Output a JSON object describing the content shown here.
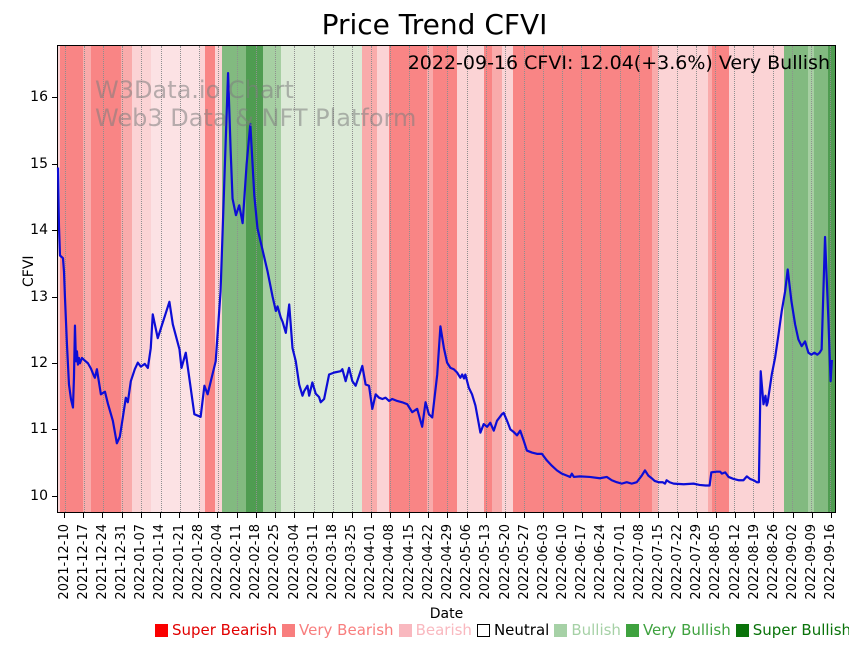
{
  "title": "Price Trend CFVI",
  "annotation": "2022-09-16 CFVI: 12.04(+3.6%) Very Bullish",
  "watermark": {
    "line1": "W3Data.io Chart",
    "line2": "Web3 Data & NFT Platform"
  },
  "axes": {
    "x_label": "Date",
    "y_label": "CFVI",
    "y_ticks": [
      16,
      15,
      14,
      13,
      12,
      11,
      10
    ],
    "y_range": [
      9.74,
      16.79
    ],
    "x_tick_labels": [
      "2021-12-10",
      "2021-12-17",
      "2021-12-24",
      "2021-12-31",
      "2022-01-07",
      "2022-01-14",
      "2022-01-21",
      "2022-01-28",
      "2022-02-04",
      "2022-02-11",
      "2022-02-18",
      "2022-02-25",
      "2022-03-04",
      "2022-03-11",
      "2022-03-18",
      "2022-03-25",
      "2022-04-01",
      "2022-04-08",
      "2022-04-15",
      "2022-04-22",
      "2022-04-29",
      "2022-05-06",
      "2022-05-13",
      "2022-05-20",
      "2022-05-27",
      "2022-06-03",
      "2022-06-10",
      "2022-06-17",
      "2022-06-24",
      "2022-07-01",
      "2022-07-08",
      "2022-07-15",
      "2022-07-22",
      "2022-07-29",
      "2022-08-05",
      "2022-08-12",
      "2022-08-19",
      "2022-08-26",
      "2022-09-02",
      "2022-09-09",
      "2022-09-16"
    ],
    "x_first_tick_frac": 0.00899,
    "x_tick_step_frac": 0.024614
  },
  "line_color": "#0d0dd6",
  "band_palette": {
    "salmon": "#f98585",
    "pink_med": "#f9abab",
    "pink_light": "#fbd3d5",
    "pink_vlight": "#fce2e4",
    "green_dark": "#4f9c51",
    "green_med": "#82ba80",
    "green_mlight": "#a6cfa2",
    "green_vlight": "#dcead7"
  },
  "legend": {
    "items": [
      {
        "label": "Super Bearish",
        "swatch": "#fa0000",
        "text_color": "#e10000",
        "swatch_border": "none"
      },
      {
        "label": "Very Bearish",
        "swatch": "#f87e7e",
        "text_color": "#f87e7e",
        "swatch_border": "none"
      },
      {
        "label": "Bearish",
        "swatch": "#f9b8bf",
        "text_color": "#f9b8bf",
        "swatch_border": "none"
      },
      {
        "label": "Neutral",
        "swatch": "#ffffff",
        "text_color": "#000000",
        "swatch_border": "1px solid #000"
      },
      {
        "label": "Bullish",
        "swatch": "#a6d1a6",
        "text_color": "#a6d1a6",
        "swatch_border": "none"
      },
      {
        "label": "Very Bullish",
        "swatch": "#3fa23f",
        "text_color": "#3fa23f",
        "swatch_border": "none"
      },
      {
        "label": "Super Bullish",
        "swatch": "#0a730a",
        "text_color": "#0a730a",
        "swatch_border": "none"
      }
    ]
  },
  "chart_data": {
    "type": "line",
    "title": "Price Trend CFVI",
    "xlabel": "Date",
    "ylabel": "CFVI",
    "ylim": [
      9.74,
      16.79
    ],
    "x_range_dates": [
      "2021-12-09",
      "2022-09-16"
    ],
    "grid": "vertical-dotted-weekly",
    "legend_position": "bottom-center",
    "last_point": {
      "date": "2022-09-16",
      "value": 12.04,
      "change_pct": "+3.6%",
      "sentiment": "Very Bullish"
    },
    "series": [
      {
        "name": "CFVI",
        "points": [
          [
            0.0,
            14.95
          ],
          [
            0.0013,
            14.05
          ],
          [
            0.0026,
            13.62
          ],
          [
            0.0064,
            13.58
          ],
          [
            0.0077,
            13.38
          ],
          [
            0.009,
            12.98
          ],
          [
            0.0116,
            12.27
          ],
          [
            0.0141,
            11.67
          ],
          [
            0.0167,
            11.45
          ],
          [
            0.0193,
            11.32
          ],
          [
            0.0205,
            11.77
          ],
          [
            0.0218,
            12.56
          ],
          [
            0.0231,
            12.02
          ],
          [
            0.0244,
            12.17
          ],
          [
            0.0257,
            11.97
          ],
          [
            0.027,
            12.07
          ],
          [
            0.0283,
            11.99
          ],
          [
            0.0308,
            12.07
          ],
          [
            0.0347,
            12.03
          ],
          [
            0.0385,
            11.99
          ],
          [
            0.0424,
            11.91
          ],
          [
            0.0462,
            11.8
          ],
          [
            0.0475,
            11.77
          ],
          [
            0.0501,
            11.9
          ],
          [
            0.0552,
            11.52
          ],
          [
            0.0604,
            11.56
          ],
          [
            0.0642,
            11.38
          ],
          [
            0.0706,
            11.12
          ],
          [
            0.0758,
            10.78
          ],
          [
            0.0796,
            10.88
          ],
          [
            0.0835,
            11.17
          ],
          [
            0.0873,
            11.47
          ],
          [
            0.0899,
            11.4
          ],
          [
            0.0937,
            11.72
          ],
          [
            0.0989,
            11.9
          ],
          [
            0.1027,
            12.0
          ],
          [
            0.1066,
            11.94
          ],
          [
            0.1117,
            11.98
          ],
          [
            0.1156,
            11.92
          ],
          [
            0.1194,
            12.22
          ],
          [
            0.122,
            12.73
          ],
          [
            0.1284,
            12.37
          ],
          [
            0.1434,
            12.92
          ],
          [
            0.1477,
            12.58
          ],
          [
            0.1563,
            12.2
          ],
          [
            0.1589,
            11.92
          ],
          [
            0.1644,
            12.15
          ],
          [
            0.1755,
            11.22
          ],
          [
            0.1836,
            11.18
          ],
          [
            0.1884,
            11.65
          ],
          [
            0.1926,
            11.52
          ],
          [
            0.2029,
            12.02
          ],
          [
            0.2093,
            13.08
          ],
          [
            0.2145,
            14.9
          ],
          [
            0.2189,
            16.38
          ],
          [
            0.2222,
            15.2
          ],
          [
            0.2247,
            14.48
          ],
          [
            0.229,
            14.23
          ],
          [
            0.2333,
            14.38
          ],
          [
            0.2376,
            14.11
          ],
          [
            0.2427,
            15.0
          ],
          [
            0.2475,
            15.61
          ],
          [
            0.2526,
            14.53
          ],
          [
            0.2568,
            14.03
          ],
          [
            0.2697,
            13.38
          ],
          [
            0.2761,
            13.0
          ],
          [
            0.2803,
            12.78
          ],
          [
            0.2825,
            12.85
          ],
          [
            0.2868,
            12.68
          ],
          [
            0.2889,
            12.62
          ],
          [
            0.2932,
            12.45
          ],
          [
            0.2975,
            12.88
          ],
          [
            0.3018,
            12.22
          ],
          [
            0.306,
            12.02
          ],
          [
            0.3104,
            11.67
          ],
          [
            0.3146,
            11.5
          ],
          [
            0.3168,
            11.57
          ],
          [
            0.321,
            11.65
          ],
          [
            0.3232,
            11.5
          ],
          [
            0.3274,
            11.7
          ],
          [
            0.3317,
            11.53
          ],
          [
            0.336,
            11.48
          ],
          [
            0.3381,
            11.4
          ],
          [
            0.3425,
            11.45
          ],
          [
            0.3489,
            11.82
          ],
          [
            0.3557,
            11.85
          ],
          [
            0.3638,
            11.87
          ],
          [
            0.366,
            11.9
          ],
          [
            0.3702,
            11.72
          ],
          [
            0.3746,
            11.92
          ],
          [
            0.3788,
            11.72
          ],
          [
            0.3831,
            11.65
          ],
          [
            0.3874,
            11.8
          ],
          [
            0.3917,
            11.95
          ],
          [
            0.3959,
            11.67
          ],
          [
            0.4003,
            11.65
          ],
          [
            0.4045,
            11.3
          ],
          [
            0.4088,
            11.52
          ],
          [
            0.4131,
            11.47
          ],
          [
            0.4174,
            11.45
          ],
          [
            0.4216,
            11.47
          ],
          [
            0.426,
            11.42
          ],
          [
            0.4302,
            11.45
          ],
          [
            0.4366,
            11.42
          ],
          [
            0.443,
            11.4
          ],
          [
            0.4495,
            11.37
          ],
          [
            0.4559,
            11.25
          ],
          [
            0.4623,
            11.3
          ],
          [
            0.4687,
            11.03
          ],
          [
            0.473,
            11.4
          ],
          [
            0.4773,
            11.22
          ],
          [
            0.4816,
            11.17
          ],
          [
            0.488,
            11.82
          ],
          [
            0.4922,
            12.55
          ],
          [
            0.4966,
            12.22
          ],
          [
            0.5008,
            12.0
          ],
          [
            0.5051,
            11.92
          ],
          [
            0.5094,
            11.9
          ],
          [
            0.5136,
            11.85
          ],
          [
            0.5179,
            11.77
          ],
          [
            0.5201,
            11.82
          ],
          [
            0.5226,
            11.76
          ],
          [
            0.5243,
            11.82
          ],
          [
            0.5287,
            11.62
          ],
          [
            0.5329,
            11.52
          ],
          [
            0.5372,
            11.35
          ],
          [
            0.5436,
            10.94
          ],
          [
            0.5479,
            11.07
          ],
          [
            0.5522,
            11.03
          ],
          [
            0.5564,
            11.09
          ],
          [
            0.5608,
            10.97
          ],
          [
            0.565,
            11.12
          ],
          [
            0.5714,
            11.22
          ],
          [
            0.5736,
            11.24
          ],
          [
            0.5779,
            11.12
          ],
          [
            0.5821,
            10.99
          ],
          [
            0.5865,
            10.95
          ],
          [
            0.5907,
            10.9
          ],
          [
            0.5949,
            10.97
          ],
          [
            0.5993,
            10.82
          ],
          [
            0.6035,
            10.67
          ],
          [
            0.61,
            10.64
          ],
          [
            0.6164,
            10.62
          ],
          [
            0.6228,
            10.62
          ],
          [
            0.6292,
            10.52
          ],
          [
            0.6356,
            10.44
          ],
          [
            0.6421,
            10.37
          ],
          [
            0.6485,
            10.32
          ],
          [
            0.6549,
            10.29
          ],
          [
            0.6591,
            10.27
          ],
          [
            0.6613,
            10.32
          ],
          [
            0.6639,
            10.27
          ],
          [
            0.6716,
            10.28
          ],
          [
            0.6844,
            10.27
          ],
          [
            0.6973,
            10.25
          ],
          [
            0.7063,
            10.27
          ],
          [
            0.7127,
            10.22
          ],
          [
            0.7191,
            10.19
          ],
          [
            0.7255,
            10.17
          ],
          [
            0.7319,
            10.19
          ],
          [
            0.7384,
            10.17
          ],
          [
            0.7448,
            10.19
          ],
          [
            0.7512,
            10.29
          ],
          [
            0.7554,
            10.37
          ],
          [
            0.7598,
            10.29
          ],
          [
            0.7641,
            10.25
          ],
          [
            0.7679,
            10.21
          ],
          [
            0.7731,
            10.19
          ],
          [
            0.7782,
            10.19
          ],
          [
            0.7812,
            10.17
          ],
          [
            0.7833,
            10.22
          ],
          [
            0.7872,
            10.19
          ],
          [
            0.7923,
            10.17
          ],
          [
            0.8052,
            10.16
          ],
          [
            0.818,
            10.17
          ],
          [
            0.8257,
            10.15
          ],
          [
            0.8334,
            10.14
          ],
          [
            0.8386,
            10.14
          ],
          [
            0.8408,
            10.34
          ],
          [
            0.8476,
            10.35
          ],
          [
            0.8523,
            10.35
          ],
          [
            0.8544,
            10.32
          ],
          [
            0.8587,
            10.34
          ],
          [
            0.863,
            10.27
          ],
          [
            0.8694,
            10.24
          ],
          [
            0.8758,
            10.22
          ],
          [
            0.8822,
            10.22
          ],
          [
            0.8865,
            10.28
          ],
          [
            0.8908,
            10.24
          ],
          [
            0.8951,
            10.22
          ],
          [
            0.8993,
            10.19
          ],
          [
            0.9021,
            10.19
          ],
          [
            0.9044,
            11.87
          ],
          [
            0.9079,
            11.37
          ],
          [
            0.9105,
            11.5
          ],
          [
            0.9121,
            11.35
          ],
          [
            0.9134,
            11.4
          ],
          [
            0.9186,
            11.82
          ],
          [
            0.9229,
            12.07
          ],
          [
            0.9272,
            12.42
          ],
          [
            0.9314,
            12.78
          ],
          [
            0.9358,
            13.08
          ],
          [
            0.9391,
            13.41
          ],
          [
            0.9439,
            12.93
          ],
          [
            0.9486,
            12.58
          ],
          [
            0.9529,
            12.35
          ],
          [
            0.9571,
            12.25
          ],
          [
            0.9615,
            12.32
          ],
          [
            0.9657,
            12.15
          ],
          [
            0.9696,
            12.12
          ],
          [
            0.9734,
            12.15
          ],
          [
            0.9773,
            12.12
          ],
          [
            0.9802,
            12.15
          ],
          [
            0.9828,
            12.2
          ],
          [
            0.9872,
            13.9
          ],
          [
            0.9914,
            12.68
          ],
          [
            0.9944,
            11.72
          ],
          [
            0.996,
            12.04
          ]
        ]
      }
    ],
    "sentiment_bands": [
      {
        "start": 0.0,
        "end": 0.0032,
        "tone": "pink_light"
      },
      {
        "start": 0.0032,
        "end": 0.0321,
        "tone": "salmon"
      },
      {
        "start": 0.0321,
        "end": 0.0424,
        "tone": "pink_med"
      },
      {
        "start": 0.0424,
        "end": 0.0813,
        "tone": "salmon"
      },
      {
        "start": 0.0813,
        "end": 0.095,
        "tone": "pink_med"
      },
      {
        "start": 0.095,
        "end": 0.1198,
        "tone": "pink_light"
      },
      {
        "start": 0.1198,
        "end": 0.1823,
        "tone": "pink_vlight"
      },
      {
        "start": 0.1823,
        "end": 0.1888,
        "tone": "pink_light"
      },
      {
        "start": 0.1888,
        "end": 0.2023,
        "tone": "salmon"
      },
      {
        "start": 0.2023,
        "end": 0.2112,
        "tone": "pink_light"
      },
      {
        "start": 0.2112,
        "end": 0.2414,
        "tone": "green_med"
      },
      {
        "start": 0.2414,
        "end": 0.2639,
        "tone": "green_dark"
      },
      {
        "start": 0.2639,
        "end": 0.2876,
        "tone": "green_mlight"
      },
      {
        "start": 0.2876,
        "end": 0.391,
        "tone": "green_vlight"
      },
      {
        "start": 0.391,
        "end": 0.4109,
        "tone": "pink_med"
      },
      {
        "start": 0.4109,
        "end": 0.4263,
        "tone": "pink_light"
      },
      {
        "start": 0.4263,
        "end": 0.4751,
        "tone": "salmon"
      },
      {
        "start": 0.4751,
        "end": 0.4828,
        "tone": "pink_med"
      },
      {
        "start": 0.4828,
        "end": 0.5136,
        "tone": "salmon"
      },
      {
        "start": 0.5136,
        "end": 0.5479,
        "tone": "pink_light"
      },
      {
        "start": 0.5479,
        "end": 0.5586,
        "tone": "salmon"
      },
      {
        "start": 0.5586,
        "end": 0.5714,
        "tone": "pink_med"
      },
      {
        "start": 0.5714,
        "end": 0.5862,
        "tone": "pink_light"
      },
      {
        "start": 0.5862,
        "end": 0.7641,
        "tone": "salmon"
      },
      {
        "start": 0.7641,
        "end": 0.7724,
        "tone": "pink_med"
      },
      {
        "start": 0.7724,
        "end": 0.836,
        "tone": "pink_light"
      },
      {
        "start": 0.836,
        "end": 0.8415,
        "tone": "pink_med"
      },
      {
        "start": 0.8415,
        "end": 0.8642,
        "tone": "salmon"
      },
      {
        "start": 0.8642,
        "end": 0.934,
        "tone": "pink_light"
      },
      {
        "start": 0.934,
        "end": 0.9648,
        "tone": "green_med"
      },
      {
        "start": 0.9648,
        "end": 0.9734,
        "tone": "green_mlight"
      },
      {
        "start": 0.9734,
        "end": 0.9914,
        "tone": "green_med"
      },
      {
        "start": 0.9914,
        "end": 1.0,
        "tone": "green_dark"
      }
    ]
  }
}
